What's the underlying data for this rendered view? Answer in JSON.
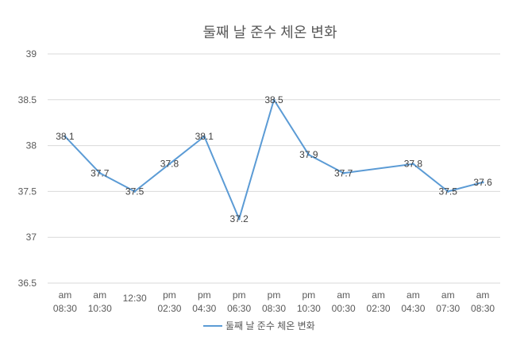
{
  "chart_data": {
    "type": "line",
    "title": "둘째 날 준수 체온 변화",
    "categories": [
      [
        "am",
        "08:30"
      ],
      [
        "am",
        "10:30"
      ],
      [
        "",
        "12:30"
      ],
      [
        "pm",
        "02:30"
      ],
      [
        "pm",
        "04:30"
      ],
      [
        "pm",
        "06:30"
      ],
      [
        "pm",
        "08:30"
      ],
      [
        "pm",
        "10:30"
      ],
      [
        "am",
        "00:30"
      ],
      [
        "am",
        "02:30"
      ],
      [
        "am",
        "04:30"
      ],
      [
        "am",
        "07:30"
      ],
      [
        "am",
        "08:30"
      ]
    ],
    "series": [
      {
        "name": "둘째 날 준수 체온 변화",
        "color": "#5B9BD5",
        "values": [
          38.1,
          37.7,
          37.5,
          37.8,
          38.1,
          37.2,
          38.5,
          37.9,
          37.7,
          null,
          37.8,
          37.5,
          37.6
        ]
      }
    ],
    "ylim": [
      36.5,
      39
    ],
    "yticks": [
      "36.5",
      "37",
      "37.5",
      "38",
      "38.5",
      "39"
    ],
    "grid": true,
    "legend": "bottom",
    "gaps": "connected"
  }
}
